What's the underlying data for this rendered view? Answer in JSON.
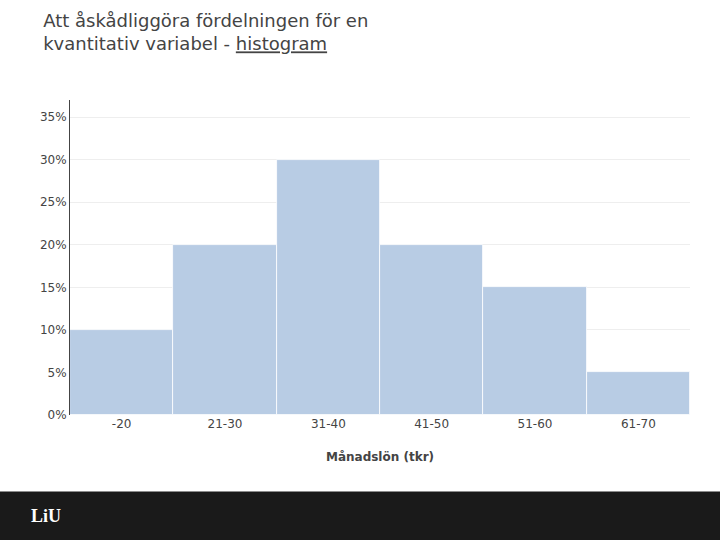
{
  "chart_data": {
    "type": "bar",
    "title": "Att åskådliggöra fördelningen för en\nkvantitativ variabel - histogram",
    "xlabel": "Månadslön (tkr)",
    "categories": [
      "-20",
      "21-30",
      "31-40",
      "41-50",
      "51-60",
      "61-70"
    ],
    "values": [
      0.1,
      0.2,
      0.3,
      0.2,
      0.15,
      0.05
    ],
    "color": "#b8cce4",
    "ylim": [
      0,
      0.37
    ],
    "yticks": [
      {
        "value": 0.0,
        "label": "0%"
      },
      {
        "value": 0.05,
        "label": "5%"
      },
      {
        "value": 0.1,
        "label": "10%"
      },
      {
        "value": 0.15,
        "label": "15%"
      },
      {
        "value": 0.2,
        "label": "20%"
      },
      {
        "value": 0.25,
        "label": "25%"
      },
      {
        "value": 0.3,
        "label": "30%"
      },
      {
        "value": 0.35,
        "label": "35%"
      }
    ],
    "grid": true,
    "annotations": [
      "LiU"
    ]
  }
}
